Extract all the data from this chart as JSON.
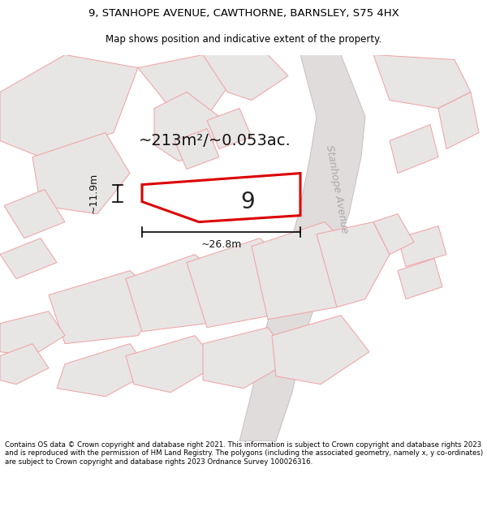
{
  "title_line1": "9, STANHOPE AVENUE, CAWTHORNE, BARNSLEY, S75 4HX",
  "title_line2": "Map shows position and indicative extent of the property.",
  "footer_text": "Contains OS data © Crown copyright and database right 2021. This information is subject to Crown copyright and database rights 2023 and is reproduced with the permission of HM Land Registry. The polygons (including the associated geometry, namely x, y co-ordinates) are subject to Crown copyright and database rights 2023 Ordnance Survey 100026316.",
  "area_text": "~213m²/~0.053ac.",
  "plot_number": "9",
  "dim_width": "~26.8m",
  "dim_height": "~11.9m",
  "map_bg": "#ffffff",
  "parcel_fill": "#e8e5e5",
  "parcel_edge": "#f0a0a0",
  "road_fill": "#e0dcdc",
  "road_edge": "#c0baba",
  "highlight_fill": "#ffffff",
  "highlight_edge": "#dd0000",
  "road_label": "Stanhope Avenue",
  "title_bg": "#ffffff",
  "footer_bg": "#ffffff",
  "title_fontsize": 9.5,
  "subtitle_fontsize": 8.5,
  "footer_fontsize": 6.2,
  "area_fontsize": 14,
  "dim_fontsize": 9,
  "plot_label_fontsize": 20,
  "road_label_fontsize": 9
}
